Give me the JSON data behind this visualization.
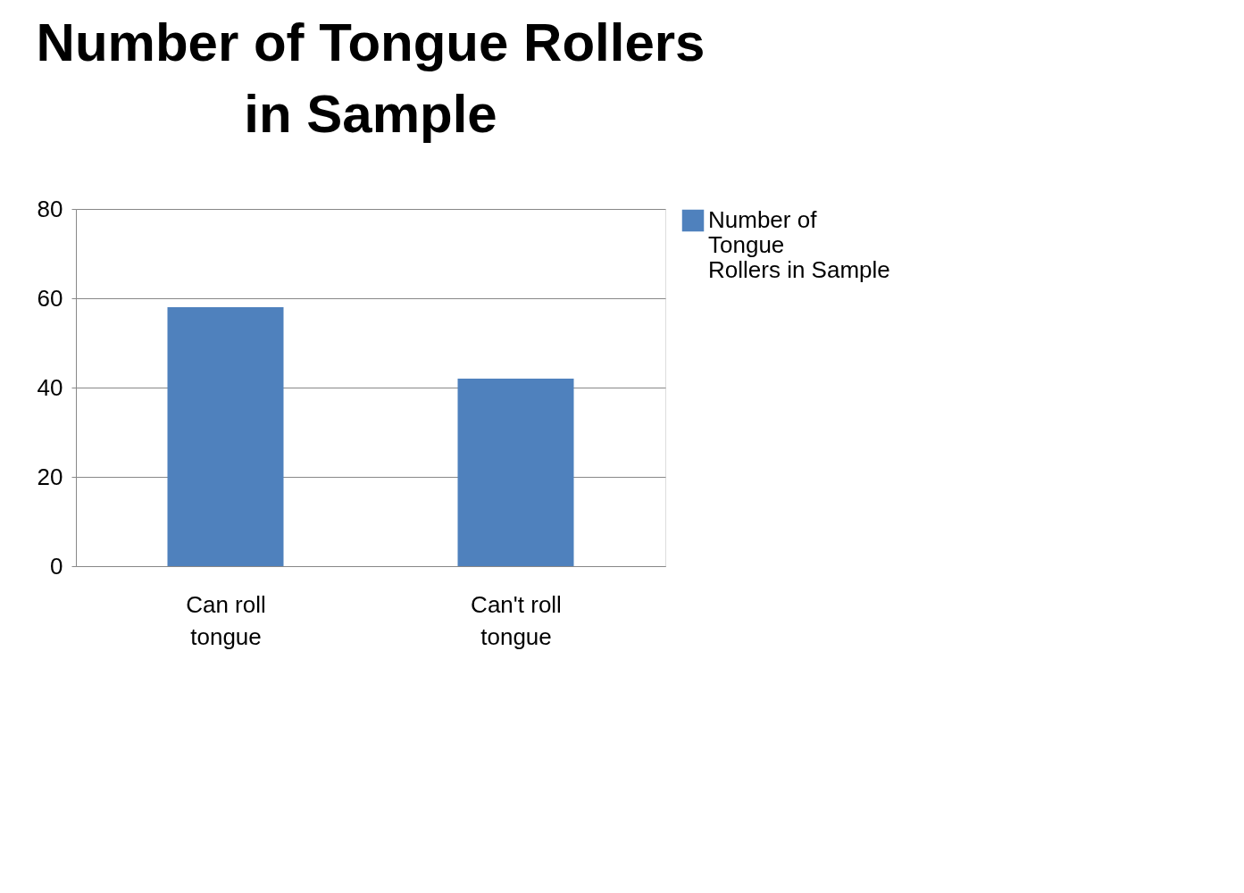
{
  "chart_data": {
    "type": "bar",
    "title": "Number of Tongue Rollers in Sample",
    "categories": [
      "Can roll tongue",
      "Can't roll tongue"
    ],
    "series": [
      {
        "name": "Number of Tongue Rollers in Sample",
        "color": "#4f81bd",
        "values": [
          58,
          42
        ]
      }
    ],
    "ylim": [
      0,
      80
    ],
    "yticks": [
      0,
      20,
      40,
      60,
      80
    ],
    "grid": "y",
    "legend": "right"
  }
}
